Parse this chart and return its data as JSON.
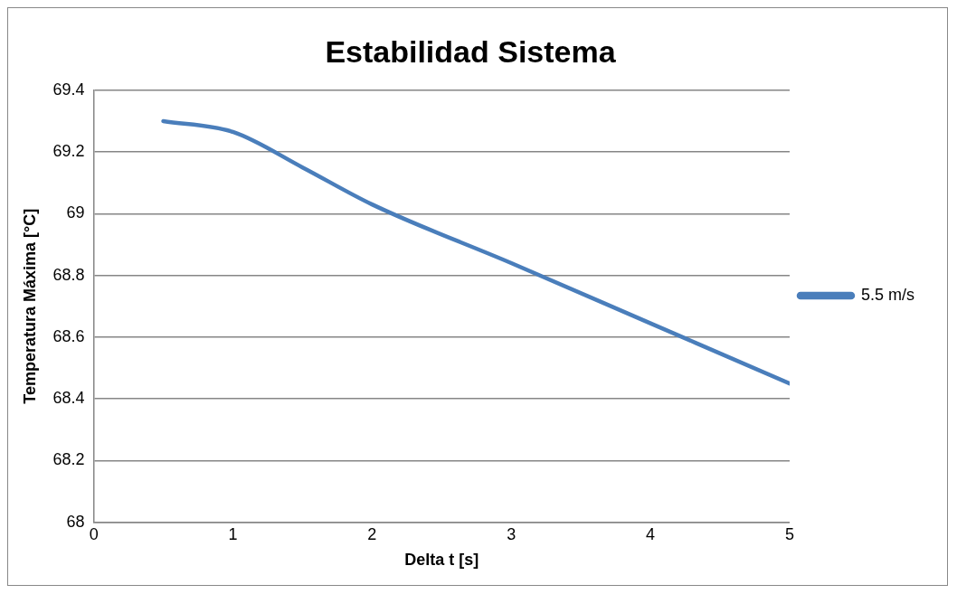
{
  "chart_data": {
    "type": "line",
    "title": "Estabilidad Sistema",
    "xlabel": "Delta t [s]",
    "ylabel": "Temperatura Máxima [°C]",
    "x": [
      0.5,
      1,
      1.5,
      2,
      3,
      4,
      5
    ],
    "series": [
      {
        "name": "5.5 m/s",
        "color": "#4a7ebb",
        "values": [
          69.3,
          69.265,
          69.15,
          69.03,
          68.84,
          68.645,
          68.45
        ]
      }
    ],
    "xlim": [
      0,
      5
    ],
    "xticks": [
      0,
      1,
      2,
      3,
      4,
      5
    ],
    "ylim": [
      68,
      69.4
    ],
    "yticks": [
      68,
      68.2,
      68.4,
      68.6,
      68.8,
      69,
      69.2,
      69.4
    ],
    "grid": "y",
    "legend": "right",
    "marker": "none",
    "line_style": "solid"
  }
}
